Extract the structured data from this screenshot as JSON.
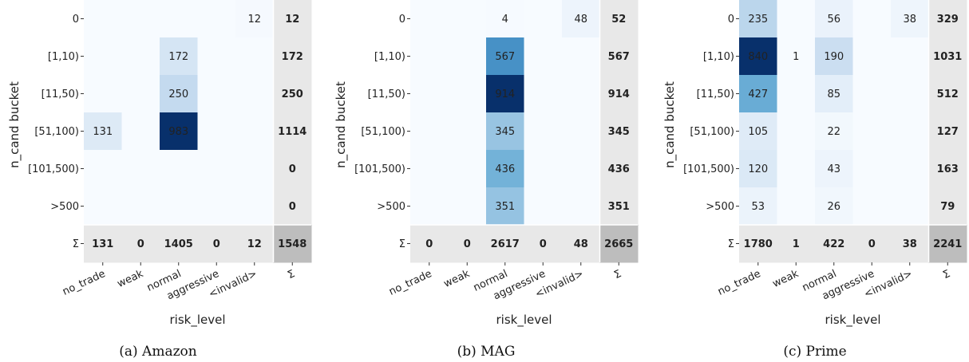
{
  "chart_data": [
    {
      "type": "heatmap",
      "caption": "(a) Amazon",
      "xlabel": "risk_level",
      "ylabel": "n_cand bucket",
      "x_categories": [
        "no_trade",
        "weak",
        "normal",
        "aggressive",
        "<invalid>",
        "Σ"
      ],
      "y_categories": [
        "0",
        "[1,10)",
        "[11,50)",
        "[51,100)",
        "[101,500)",
        ">500",
        "Σ"
      ],
      "values": [
        [
          0,
          0,
          0,
          0,
          12,
          12
        ],
        [
          0,
          0,
          172,
          0,
          0,
          172
        ],
        [
          0,
          0,
          250,
          0,
          0,
          250
        ],
        [
          131,
          0,
          983,
          0,
          0,
          1114
        ],
        [
          0,
          0,
          0,
          0,
          0,
          0
        ],
        [
          0,
          0,
          0,
          0,
          0,
          0
        ],
        [
          131,
          0,
          1405,
          0,
          12,
          1548
        ]
      ],
      "colormap": "Blues",
      "zero_cells_unlabeled": true
    },
    {
      "type": "heatmap",
      "caption": "(b) MAG",
      "xlabel": "risk_level",
      "ylabel": "n_cand bucket",
      "x_categories": [
        "no_trade",
        "weak",
        "normal",
        "aggressive",
        "<invalid>",
        "Σ"
      ],
      "y_categories": [
        "0",
        "[1,10)",
        "[11,50)",
        "[51,100)",
        "[101,500)",
        ">500",
        "Σ"
      ],
      "values": [
        [
          0,
          0,
          4,
          0,
          48,
          52
        ],
        [
          0,
          0,
          567,
          0,
          0,
          567
        ],
        [
          0,
          0,
          914,
          0,
          0,
          914
        ],
        [
          0,
          0,
          345,
          0,
          0,
          345
        ],
        [
          0,
          0,
          436,
          0,
          0,
          436
        ],
        [
          0,
          0,
          351,
          0,
          0,
          351
        ],
        [
          0,
          0,
          2617,
          0,
          48,
          2665
        ]
      ],
      "colormap": "Blues",
      "zero_cells_unlabeled": true
    },
    {
      "type": "heatmap",
      "caption": "(c) Prime",
      "xlabel": "risk_level",
      "ylabel": "n_cand bucket",
      "x_categories": [
        "no_trade",
        "weak",
        "normal",
        "aggressive",
        "<invalid>",
        "Σ"
      ],
      "y_categories": [
        "0",
        "[1,10)",
        "[11,50)",
        "[51,100)",
        "[101,500)",
        ">500",
        "Σ"
      ],
      "values": [
        [
          235,
          0,
          56,
          0,
          38,
          329
        ],
        [
          840,
          1,
          190,
          0,
          0,
          1031
        ],
        [
          427,
          0,
          85,
          0,
          0,
          512
        ],
        [
          105,
          0,
          22,
          0,
          0,
          127
        ],
        [
          120,
          0,
          43,
          0,
          0,
          163
        ],
        [
          53,
          0,
          26,
          0,
          0,
          79
        ],
        [
          1780,
          1,
          422,
          0,
          38,
          2241
        ]
      ],
      "colormap": "Blues",
      "zero_cells_unlabeled": true
    }
  ],
  "colors": {
    "blues_low": "#f7fbff",
    "blues_mid1": "#c6dbef",
    "blues_mid2": "#6baed6",
    "blues_mid3": "#2171b5",
    "blues_high": "#08306b",
    "sum_cell": "#e8e8e8",
    "grand_total_cell": "#bdbdbd"
  }
}
